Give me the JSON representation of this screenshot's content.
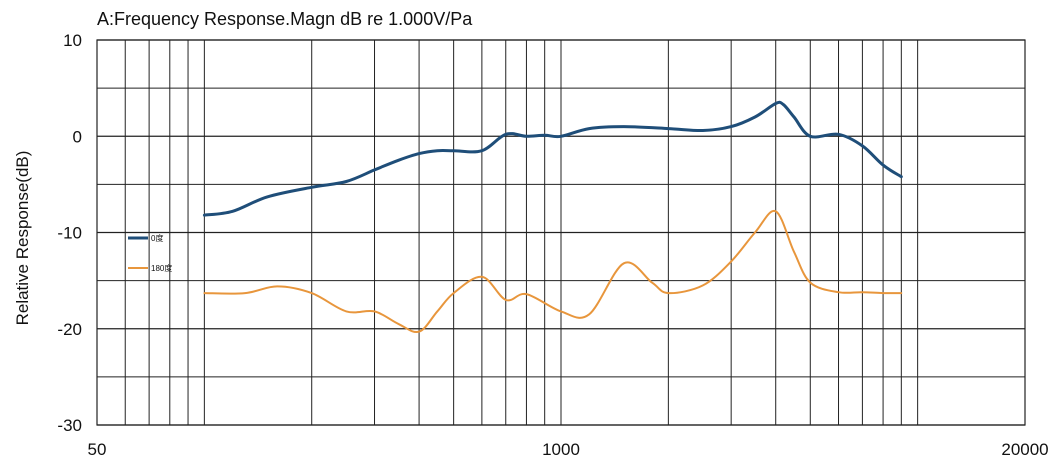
{
  "chart_data": {
    "type": "line",
    "title": "A:Frequency Response.Magn dB re 1.000V/Pa",
    "xlabel": "",
    "ylabel": "Relative Response(dB)",
    "xscale": "log",
    "xlim": [
      50,
      20000
    ],
    "ylim": [
      -30,
      10
    ],
    "x_tick_labels": [
      "50",
      "1000",
      "20000"
    ],
    "y_ticks": [
      10,
      0,
      -10,
      -20,
      -30
    ],
    "grid": true,
    "legend_position": "left",
    "series": [
      {
        "name": "0度",
        "color": "#1f4e79",
        "x": [
          100,
          120,
          150,
          200,
          250,
          300,
          350,
          400,
          450,
          500,
          600,
          700,
          800,
          900,
          1000,
          1200,
          1500,
          2000,
          2500,
          3000,
          3500,
          4000,
          4200,
          4500,
          5000,
          6000,
          7000,
          8000,
          9000
        ],
        "y": [
          -8.2,
          -7.8,
          -6.3,
          -5.3,
          -4.7,
          -3.5,
          -2.5,
          -1.8,
          -1.5,
          -1.5,
          -1.5,
          0.2,
          0,
          0.1,
          0,
          0.8,
          1.0,
          0.8,
          0.6,
          1.0,
          2.0,
          3.4,
          3.3,
          2.0,
          0.0,
          0.2,
          -1.0,
          -3.0,
          -4.2
        ]
      },
      {
        "name": "180度",
        "color": "#e8963c",
        "x": [
          100,
          130,
          160,
          200,
          250,
          300,
          350,
          400,
          450,
          500,
          600,
          700,
          800,
          1000,
          1200,
          1500,
          1800,
          2000,
          2500,
          3000,
          3500,
          4000,
          4500,
          5000,
          6000,
          7000,
          8000,
          9000
        ],
        "y": [
          -16.3,
          -16.3,
          -15.6,
          -16.3,
          -18.2,
          -18.2,
          -19.5,
          -20.3,
          -18.2,
          -16.3,
          -14.6,
          -17.0,
          -16.4,
          -18.2,
          -18.5,
          -13.2,
          -15.2,
          -16.3,
          -15.5,
          -13.0,
          -10.0,
          -7.8,
          -12.0,
          -15.2,
          -16.2,
          -16.2,
          -16.3,
          -16.3
        ]
      }
    ]
  }
}
